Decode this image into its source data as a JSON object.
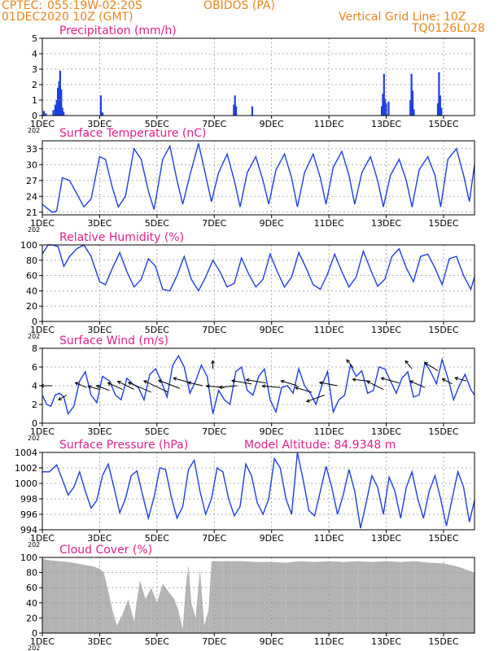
{
  "header": {
    "source": "CPTEC:",
    "coords": "055:19W-02:20S",
    "station": "OBIDOS (PA)",
    "run": "01DEC2020 10Z (GMT)",
    "grid_note": "Vertical Grid Line: 10Z",
    "model_code": "TQ0126L028"
  },
  "axis_cut_label": "202",
  "chart_data": [
    {
      "id": "precip",
      "type": "bar",
      "title": "Precipitation (mm/h)",
      "color": "#1f3fe0",
      "x_range_days": [
        1,
        16.08
      ],
      "ylim": [
        0,
        5
      ],
      "yticks": [
        0,
        1,
        2,
        3,
        4,
        5
      ],
      "xticks": [
        "1DEC",
        "3DEC",
        "5DEC",
        "7DEC",
        "9DEC",
        "11DEC",
        "13DEC",
        "15DEC"
      ],
      "bars": [
        [
          1.05,
          0.3
        ],
        [
          1.12,
          0.15
        ],
        [
          1.38,
          0.35
        ],
        [
          1.45,
          0.7
        ],
        [
          1.5,
          1.0
        ],
        [
          1.54,
          1.8
        ],
        [
          1.58,
          2.2
        ],
        [
          1.62,
          2.9
        ],
        [
          1.66,
          1.7
        ],
        [
          1.7,
          0.5
        ],
        [
          1.74,
          0.25
        ],
        [
          3.04,
          1.3
        ],
        [
          3.1,
          0.2
        ],
        [
          7.68,
          0.7
        ],
        [
          7.72,
          1.3
        ],
        [
          7.76,
          0.6
        ],
        [
          8.32,
          0.6
        ],
        [
          12.84,
          0.6
        ],
        [
          12.88,
          1.4
        ],
        [
          12.92,
          2.7
        ],
        [
          12.96,
          1.1
        ],
        [
          13.0,
          0.8
        ],
        [
          13.08,
          0.9
        ],
        [
          13.84,
          1.0
        ],
        [
          13.88,
          2.7
        ],
        [
          13.92,
          1.6
        ],
        [
          13.96,
          0.4
        ],
        [
          14.8,
          0.8
        ],
        [
          14.84,
          2.8
        ],
        [
          14.88,
          1.3
        ],
        [
          14.92,
          0.5
        ]
      ]
    },
    {
      "id": "temp",
      "type": "line",
      "title": "Surface Temperature (nC)",
      "color": "#1f3fe0",
      "ylim": [
        20.5,
        34.5
      ],
      "yticks": [
        21,
        24,
        27,
        30,
        33
      ],
      "xticks": [
        "1DEC",
        "3DEC",
        "5DEC",
        "7DEC",
        "9DEC",
        "11DEC",
        "13DEC",
        "15DEC"
      ],
      "x": [
        1.0,
        1.2,
        1.35,
        1.5,
        1.7,
        1.95,
        2.2,
        2.45,
        2.7,
        3.0,
        3.2,
        3.45,
        3.65,
        3.9,
        4.2,
        4.45,
        4.7,
        4.9,
        5.2,
        5.45,
        5.7,
        5.9,
        6.15,
        6.45,
        6.7,
        6.9,
        7.15,
        7.45,
        7.7,
        7.9,
        8.15,
        8.45,
        8.7,
        8.9,
        9.15,
        9.45,
        9.7,
        9.9,
        10.15,
        10.45,
        10.7,
        10.9,
        11.15,
        11.45,
        11.7,
        11.9,
        12.15,
        12.45,
        12.7,
        12.9,
        13.15,
        13.45,
        13.7,
        13.9,
        14.15,
        14.45,
        14.7,
        14.9,
        15.15,
        15.45,
        15.7,
        15.9,
        16.08
      ],
      "values": [
        22.5,
        21.6,
        21.0,
        21.2,
        27.5,
        27.0,
        24.5,
        22.0,
        23.5,
        31.5,
        31.0,
        25.5,
        22.0,
        24.0,
        33.0,
        31.0,
        25.0,
        21.5,
        31.0,
        33.5,
        27.0,
        22.5,
        28.0,
        34.0,
        28.0,
        23.0,
        28.5,
        32.0,
        27.0,
        22.0,
        28.5,
        31.5,
        27.0,
        22.5,
        29.0,
        32.0,
        27.5,
        22.0,
        28.5,
        32.0,
        27.5,
        22.5,
        29.5,
        32.5,
        28.0,
        22.5,
        28.5,
        31.5,
        27.0,
        22.0,
        28.0,
        31.0,
        27.0,
        22.0,
        29.0,
        31.5,
        28.0,
        22.0,
        31.0,
        33.0,
        28.0,
        23.0,
        30.0
      ]
    },
    {
      "id": "rh",
      "type": "line",
      "title": "Relative Humidity (%)",
      "color": "#1f3fe0",
      "ylim": [
        0,
        100
      ],
      "yticks": [
        0,
        20,
        40,
        60,
        80,
        100
      ],
      "xticks": [
        "1DEC",
        "3DEC",
        "5DEC",
        "7DEC",
        "9DEC",
        "11DEC",
        "13DEC",
        "15DEC"
      ],
      "x": [
        1.0,
        1.2,
        1.35,
        1.55,
        1.75,
        1.95,
        2.2,
        2.45,
        2.7,
        3.0,
        3.2,
        3.45,
        3.7,
        3.95,
        4.2,
        4.45,
        4.7,
        4.95,
        5.2,
        5.45,
        5.7,
        5.95,
        6.2,
        6.45,
        6.7,
        6.95,
        7.2,
        7.45,
        7.7,
        7.95,
        8.2,
        8.45,
        8.7,
        8.95,
        9.2,
        9.45,
        9.7,
        9.95,
        10.2,
        10.45,
        10.7,
        10.95,
        11.2,
        11.45,
        11.7,
        11.95,
        12.2,
        12.45,
        12.7,
        12.95,
        13.2,
        13.45,
        13.7,
        13.95,
        14.2,
        14.45,
        14.7,
        14.95,
        15.2,
        15.45,
        15.7,
        15.95,
        16.08
      ],
      "values": [
        88,
        100,
        100,
        98,
        72,
        85,
        95,
        100,
        85,
        52,
        48,
        70,
        90,
        65,
        45,
        55,
        82,
        72,
        42,
        40,
        60,
        85,
        55,
        40,
        58,
        80,
        65,
        45,
        50,
        83,
        62,
        45,
        55,
        88,
        65,
        45,
        58,
        90,
        70,
        48,
        42,
        62,
        88,
        65,
        45,
        58,
        92,
        68,
        46,
        55,
        85,
        95,
        70,
        52,
        85,
        88,
        70,
        48,
        82,
        85,
        60,
        42,
        58
      ]
    },
    {
      "id": "wind",
      "type": "line",
      "title": "Surface Wind (m/s)",
      "color": "#1f3fe0",
      "ylim": [
        0,
        8
      ],
      "yticks": [
        0,
        2,
        4,
        6,
        8
      ],
      "xticks": [
        "1DEC",
        "3DEC",
        "5DEC",
        "7DEC",
        "9DEC",
        "11DEC",
        "13DEC",
        "15DEC"
      ],
      "x": [
        1.0,
        1.15,
        1.3,
        1.45,
        1.6,
        1.75,
        1.9,
        2.1,
        2.3,
        2.5,
        2.7,
        2.9,
        3.1,
        3.35,
        3.55,
        3.75,
        3.95,
        4.15,
        4.35,
        4.55,
        4.75,
        4.95,
        5.15,
        5.35,
        5.55,
        5.75,
        5.95,
        6.15,
        6.35,
        6.55,
        6.75,
        6.95,
        7.15,
        7.35,
        7.55,
        7.75,
        7.95,
        8.15,
        8.35,
        8.55,
        8.75,
        8.95,
        9.15,
        9.35,
        9.55,
        9.75,
        9.95,
        10.15,
        10.35,
        10.55,
        10.75,
        10.95,
        11.15,
        11.35,
        11.55,
        11.75,
        11.95,
        12.15,
        12.35,
        12.55,
        12.75,
        12.95,
        13.15,
        13.35,
        13.55,
        13.75,
        13.95,
        14.15,
        14.35,
        14.55,
        14.75,
        14.95,
        15.15,
        15.35,
        15.55,
        15.75,
        15.95,
        16.08
      ],
      "values": [
        3.0,
        2.0,
        1.8,
        3.0,
        3.2,
        2.8,
        1.0,
        1.8,
        4.5,
        5.5,
        3.0,
        2.2,
        5.0,
        4.5,
        3.0,
        2.5,
        4.8,
        4.2,
        3.8,
        2.5,
        5.2,
        5.8,
        4.5,
        2.8,
        6.2,
        7.2,
        6.0,
        3.2,
        4.5,
        6.2,
        5.0,
        1.0,
        3.5,
        2.5,
        2.0,
        5.5,
        6.0,
        3.5,
        3.0,
        5.0,
        5.8,
        2.5,
        1.2,
        3.8,
        4.0,
        3.2,
        5.8,
        4.0,
        3.2,
        2.0,
        4.0,
        5.5,
        1.2,
        2.5,
        3.0,
        6.2,
        5.0,
        5.6,
        3.2,
        3.5,
        6.0,
        5.8,
        4.5,
        3.2,
        4.8,
        5.5,
        2.8,
        3.0,
        6.5,
        5.5,
        4.2,
        6.8,
        4.8,
        2.5,
        4.0,
        5.2,
        3.6,
        3.0
      ]
    },
    {
      "id": "pressure",
      "type": "line",
      "title": "Surface Pressure (hPa)",
      "annotation": "Model Altitude: 84.9348 m",
      "color": "#1f3fe0",
      "ylim": [
        994,
        1004
      ],
      "yticks": [
        994,
        996,
        998,
        1000,
        1002,
        1004
      ],
      "xticks": [
        "1DEC",
        "3DEC",
        "5DEC",
        "7DEC",
        "9DEC",
        "11DEC",
        "13DEC",
        "15DEC"
      ],
      "x": [
        1.0,
        1.25,
        1.5,
        1.7,
        1.9,
        2.1,
        2.3,
        2.5,
        2.7,
        2.9,
        3.1,
        3.3,
        3.5,
        3.7,
        3.9,
        4.1,
        4.3,
        4.5,
        4.7,
        4.9,
        5.1,
        5.3,
        5.5,
        5.7,
        5.9,
        6.1,
        6.3,
        6.5,
        6.7,
        6.9,
        7.1,
        7.3,
        7.5,
        7.7,
        7.9,
        8.1,
        8.3,
        8.5,
        8.7,
        8.9,
        9.1,
        9.3,
        9.5,
        9.7,
        9.9,
        10.1,
        10.3,
        10.5,
        10.7,
        10.9,
        11.1,
        11.3,
        11.5,
        11.7,
        11.9,
        12.1,
        12.3,
        12.5,
        12.7,
        12.9,
        13.1,
        13.3,
        13.5,
        13.7,
        13.9,
        14.1,
        14.3,
        14.5,
        14.7,
        14.9,
        15.1,
        15.3,
        15.5,
        15.7,
        15.9,
        16.08
      ],
      "values": [
        1001.5,
        1001.5,
        1002.4,
        1000.5,
        998.5,
        999.5,
        1001.5,
        999.0,
        996.8,
        997.8,
        1001.0,
        1002.5,
        999.5,
        996.2,
        998.0,
        1001.0,
        1001.6,
        998.5,
        995.5,
        998.2,
        1002.0,
        1001.8,
        998.2,
        995.5,
        997.0,
        1001.8,
        1003.0,
        999.0,
        996.0,
        998.0,
        1002.0,
        1001.5,
        998.0,
        995.8,
        997.0,
        1002.5,
        1001.0,
        997.5,
        996.0,
        998.0,
        1003.2,
        1002.0,
        998.0,
        996.0,
        1004.0,
        1000.5,
        996.5,
        995.8,
        999.0,
        1002.2,
        999.5,
        996.0,
        998.5,
        1001.8,
        999.0,
        994.2,
        997.5,
        1001.0,
        999.5,
        996.0,
        1000.8,
        999.0,
        995.5,
        999.5,
        1001.5,
        998.0,
        995.5,
        999.0,
        1001.0,
        998.0,
        994.5,
        998.0,
        1001.5,
        999.5,
        995.0,
        997.8
      ]
    },
    {
      "id": "cloud",
      "type": "area",
      "title": "Cloud Cover (%)",
      "color": "#b3b3b3",
      "ylim": [
        0,
        100
      ],
      "yticks": [
        0,
        20,
        40,
        60,
        80,
        100
      ],
      "xticks": [
        "1DEC",
        "3DEC",
        "5DEC",
        "7DEC",
        "9DEC",
        "11DEC",
        "13DEC",
        "15DEC"
      ],
      "x": [
        1.0,
        1.3,
        1.6,
        1.9,
        2.2,
        2.5,
        2.8,
        3.0,
        3.15,
        3.3,
        3.45,
        3.6,
        3.8,
        4.0,
        4.2,
        4.4,
        4.6,
        4.8,
        5.0,
        5.2,
        5.4,
        5.6,
        5.75,
        5.9,
        6.0,
        6.1,
        6.2,
        6.35,
        6.5,
        6.65,
        6.8,
        6.9,
        7.0,
        7.3,
        7.6,
        8.0,
        8.5,
        9.0,
        9.5,
        10.0,
        10.5,
        11.0,
        11.5,
        12.0,
        12.5,
        13.0,
        13.5,
        14.0,
        14.5,
        15.0,
        15.5,
        16.08
      ],
      "values": [
        98,
        96,
        95,
        94,
        92,
        90,
        88,
        85,
        80,
        55,
        30,
        10,
        25,
        45,
        15,
        70,
        45,
        60,
        40,
        65,
        55,
        45,
        30,
        5,
        60,
        90,
        40,
        20,
        85,
        10,
        30,
        95,
        95,
        95,
        95,
        95,
        94,
        94,
        93,
        95,
        94,
        95,
        94,
        95,
        94,
        95,
        94,
        95,
        93,
        92,
        88,
        80
      ]
    }
  ]
}
